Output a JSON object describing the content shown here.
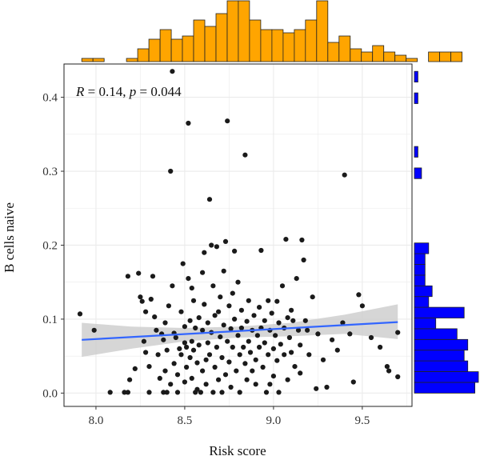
{
  "chart_data": {
    "type": "scatter",
    "xlabel": "Risk score",
    "ylabel": "B cells naive",
    "xlim": [
      7.82,
      9.78
    ],
    "ylim": [
      -0.018,
      0.445
    ],
    "x_ticks": [
      "8.0",
      "8.5",
      "9.0",
      "9.5"
    ],
    "y_ticks": [
      "0.0",
      "0.1",
      "0.2",
      "0.3",
      "0.4"
    ],
    "annotation": {
      "r_part": "R = 0.14,",
      "p_part": "p = 0.044"
    },
    "grid": true,
    "colors": {
      "points": "#1a1a1a",
      "regression_line": "#3366ff",
      "confidence_band": "#cfcfcf",
      "top_histogram": "#ffa500",
      "right_histogram": "#0000ff",
      "panel_background": "#ffffff",
      "grid": "#ebebeb"
    },
    "regression": {
      "x": [
        7.92,
        9.7
      ],
      "y": [
        0.072,
        0.096
      ]
    },
    "confidence_band": {
      "x": [
        7.92,
        8.2,
        8.5,
        8.8,
        9.1,
        9.4,
        9.7
      ],
      "upper": [
        0.095,
        0.09,
        0.088,
        0.09,
        0.095,
        0.106,
        0.12
      ],
      "lower": [
        0.049,
        0.06,
        0.07,
        0.075,
        0.077,
        0.08,
        0.073
      ]
    },
    "points": [
      [
        7.91,
        0.107
      ],
      [
        7.99,
        0.085
      ],
      [
        8.08,
        0.001
      ],
      [
        8.16,
        0.001
      ],
      [
        8.18,
        0.001
      ],
      [
        8.18,
        0.158
      ],
      [
        8.19,
        0.018
      ],
      [
        8.22,
        0.033
      ],
      [
        8.24,
        0.162
      ],
      [
        8.25,
        0.13
      ],
      [
        8.26,
        0.124
      ],
      [
        8.28,
        0.11
      ],
      [
        8.27,
        0.07
      ],
      [
        8.28,
        0.055
      ],
      [
        8.3,
        0.036
      ],
      [
        8.3,
        0.001
      ],
      [
        8.31,
        0.127
      ],
      [
        8.32,
        0.158
      ],
      [
        8.33,
        0.103
      ],
      [
        8.34,
        0.085
      ],
      [
        8.35,
        0.052
      ],
      [
        8.36,
        0.02
      ],
      [
        8.37,
        0.08
      ],
      [
        8.38,
        0.072
      ],
      [
        8.38,
        0.001
      ],
      [
        8.39,
        0.095
      ],
      [
        8.39,
        0.03
      ],
      [
        8.4,
        0.058
      ],
      [
        8.4,
        0.001
      ],
      [
        8.41,
        0.118
      ],
      [
        8.42,
        0.012
      ],
      [
        8.42,
        0.3
      ],
      [
        8.43,
        0.435
      ],
      [
        8.43,
        0.145
      ],
      [
        8.44,
        0.081
      ],
      [
        8.44,
        0.04
      ],
      [
        8.45,
        0.075
      ],
      [
        8.46,
        0.025
      ],
      [
        8.46,
        0.001
      ],
      [
        8.47,
        0.06
      ],
      [
        8.48,
        0.11
      ],
      [
        8.48,
        0.052
      ],
      [
        8.49,
        0.175
      ],
      [
        8.5,
        0.09
      ],
      [
        8.5,
        0.068
      ],
      [
        8.5,
        0.015
      ],
      [
        8.51,
        0.062
      ],
      [
        8.51,
        0.035
      ],
      [
        8.52,
        0.365
      ],
      [
        8.52,
        0.155
      ],
      [
        8.53,
        0.098
      ],
      [
        8.53,
        0.048
      ],
      [
        8.54,
        0.142
      ],
      [
        8.54,
        0.07
      ],
      [
        8.54,
        0.02
      ],
      [
        8.55,
        0.125
      ],
      [
        8.55,
        0.058
      ],
      [
        8.56,
        0.001
      ],
      [
        8.56,
        0.088
      ],
      [
        8.57,
        0.041
      ],
      [
        8.57,
        0.005
      ],
      [
        8.58,
        0.102
      ],
      [
        8.58,
        0.065
      ],
      [
        8.59,
        0.001
      ],
      [
        8.6,
        0.163
      ],
      [
        8.6,
        0.085
      ],
      [
        8.6,
        0.03
      ],
      [
        8.61,
        0.19
      ],
      [
        8.61,
        0.12
      ],
      [
        8.62,
        0.045
      ],
      [
        8.62,
        0.012
      ],
      [
        8.63,
        0.095
      ],
      [
        8.63,
        0.068
      ],
      [
        8.64,
        0.262
      ],
      [
        8.64,
        0.052
      ],
      [
        8.65,
        0.2
      ],
      [
        8.65,
        0.082
      ],
      [
        8.66,
        0.145
      ],
      [
        8.66,
        0.001
      ],
      [
        8.67,
        0.105
      ],
      [
        8.67,
        0.035
      ],
      [
        8.68,
        0.198
      ],
      [
        8.68,
        0.062
      ],
      [
        8.69,
        0.11
      ],
      [
        8.69,
        0.018
      ],
      [
        8.7,
        0.13
      ],
      [
        8.7,
        0.076
      ],
      [
        8.71,
        0.048
      ],
      [
        8.71,
        0.001
      ],
      [
        8.72,
        0.165
      ],
      [
        8.72,
        0.092
      ],
      [
        8.73,
        0.205
      ],
      [
        8.73,
        0.025
      ],
      [
        8.74,
        0.368
      ],
      [
        8.74,
        0.07
      ],
      [
        8.75,
        0.118
      ],
      [
        8.75,
        0.042
      ],
      [
        8.76,
        0.087
      ],
      [
        8.76,
        0.008
      ],
      [
        8.77,
        0.135
      ],
      [
        8.77,
        0.062
      ],
      [
        8.78,
        0.192
      ],
      [
        8.78,
        0.1
      ],
      [
        8.79,
        0.03
      ],
      [
        8.8,
        0.078
      ],
      [
        8.8,
        0.15
      ],
      [
        8.81,
        0.052
      ],
      [
        8.81,
        0.001
      ],
      [
        8.82,
        0.112
      ],
      [
        8.82,
        0.088
      ],
      [
        8.83,
        0.062
      ],
      [
        8.84,
        0.322
      ],
      [
        8.84,
        0.04
      ],
      [
        8.85,
        0.097
      ],
      [
        8.85,
        0.018
      ],
      [
        8.86,
        0.125
      ],
      [
        8.86,
        0.07
      ],
      [
        8.87,
        0.055
      ],
      [
        8.88,
        0.085
      ],
      [
        8.88,
        0.03
      ],
      [
        8.89,
        0.105
      ],
      [
        8.9,
        0.045
      ],
      [
        8.9,
        0.012
      ],
      [
        8.91,
        0.078
      ],
      [
        8.92,
        0.116
      ],
      [
        8.92,
        0.062
      ],
      [
        8.93,
        0.193
      ],
      [
        8.93,
        0.088
      ],
      [
        8.94,
        0.035
      ],
      [
        8.95,
        0.098
      ],
      [
        8.95,
        0.068
      ],
      [
        8.96,
        0.001
      ],
      [
        8.97,
        0.125
      ],
      [
        8.97,
        0.052
      ],
      [
        8.98,
        0.085
      ],
      [
        8.98,
        0.012
      ],
      [
        8.99,
        0.108
      ],
      [
        9.0,
        0.06
      ],
      [
        9.0,
        0.023
      ],
      [
        9.01,
        0.078
      ],
      [
        9.02,
        0.124
      ],
      [
        9.02,
        0.044
      ],
      [
        9.03,
        0.095
      ],
      [
        9.03,
        0.001
      ],
      [
        9.04,
        0.066
      ],
      [
        9.05,
        0.145
      ],
      [
        9.06,
        0.088
      ],
      [
        9.06,
        0.052
      ],
      [
        9.07,
        0.208
      ],
      [
        9.08,
        0.102
      ],
      [
        9.08,
        0.018
      ],
      [
        9.09,
        0.075
      ],
      [
        9.1,
        0.112
      ],
      [
        9.1,
        0.055
      ],
      [
        9.11,
        0.098
      ],
      [
        9.12,
        0.036
      ],
      [
        9.13,
        0.155
      ],
      [
        9.14,
        0.085
      ],
      [
        9.15,
        0.065
      ],
      [
        9.15,
        0.027
      ],
      [
        9.16,
        0.207
      ],
      [
        9.17,
        0.18
      ],
      [
        9.18,
        0.098
      ],
      [
        9.19,
        0.085
      ],
      [
        9.2,
        0.052
      ],
      [
        9.22,
        0.13
      ],
      [
        9.24,
        0.006
      ],
      [
        9.25,
        0.08
      ],
      [
        9.28,
        0.045
      ],
      [
        9.3,
        0.008
      ],
      [
        9.33,
        0.072
      ],
      [
        9.36,
        0.058
      ],
      [
        9.39,
        0.095
      ],
      [
        9.4,
        0.295
      ],
      [
        9.43,
        0.08
      ],
      [
        9.45,
        0.015
      ],
      [
        9.48,
        0.133
      ],
      [
        9.5,
        0.118
      ],
      [
        9.55,
        0.075
      ],
      [
        9.6,
        0.062
      ],
      [
        9.64,
        0.036
      ],
      [
        9.65,
        0.03
      ],
      [
        9.7,
        0.082
      ],
      [
        9.7,
        0.022
      ]
    ],
    "top_histogram": {
      "bin_start": 7.92,
      "bin_width": 0.063,
      "counts": [
        1,
        1,
        0,
        0,
        1,
        4,
        7,
        10,
        7,
        8,
        13,
        11,
        15,
        19,
        19,
        13,
        10,
        10,
        9,
        10,
        13,
        19,
        6,
        8,
        4,
        3,
        5,
        3,
        2,
        1,
        0,
        3,
        3,
        3
      ]
    },
    "right_histogram": {
      "bin_start": 0.0,
      "bin_width": 0.0145,
      "counts": [
        17,
        18,
        15,
        14,
        15,
        12,
        6,
        14,
        4,
        5,
        3,
        3,
        3,
        4,
        0,
        0,
        0,
        0,
        0,
        0,
        2,
        0,
        1,
        0,
        0,
        0,
        0,
        1,
        0,
        1
      ]
    }
  }
}
